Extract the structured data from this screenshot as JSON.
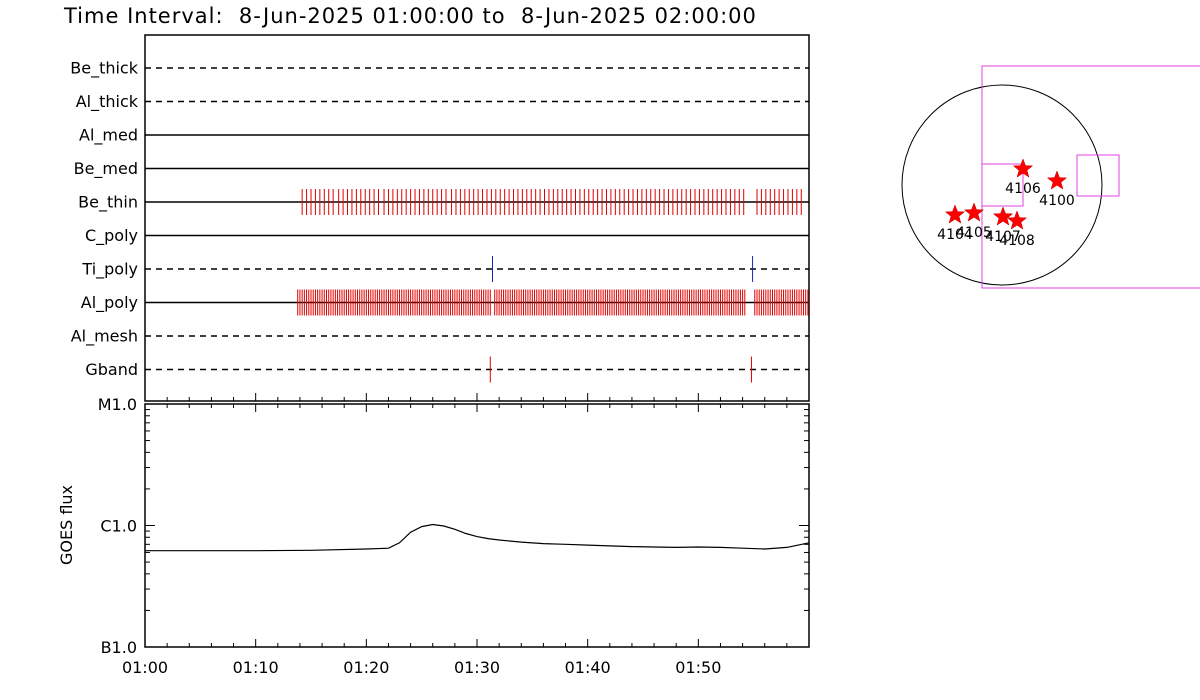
{
  "title": "Time Interval:  8-Jun-2025 01:00:00 to  8-Jun-2025 02:00:00",
  "colors": {
    "event_red": "#e00000",
    "event_blue": "#2020c0",
    "map_magenta": "#e040e0",
    "star_red": "#ff0000"
  },
  "chart_data": [
    {
      "type": "event-timeline",
      "x_range_min": [
        0,
        60
      ],
      "rows": [
        {
          "name": "Be_thick",
          "style": "dashed",
          "events": []
        },
        {
          "name": "Al_thick",
          "style": "dashed",
          "events": []
        },
        {
          "name": "Al_med",
          "style": "solid",
          "events": []
        },
        {
          "name": "Be_med",
          "style": "solid",
          "events": []
        },
        {
          "name": "Be_thin",
          "style": "solid",
          "event_color": "red",
          "events": [
            14.2,
            14.6,
            15.0,
            15.4,
            15.8,
            16.2,
            16.6,
            17.0,
            17.5,
            17.9,
            18.3,
            18.7,
            19.1,
            19.5,
            19.9,
            20.3,
            20.7,
            21.1,
            21.6,
            22.0,
            22.4,
            22.8,
            23.2,
            23.6,
            24.0,
            24.4,
            24.8,
            25.2,
            25.6,
            26.0,
            26.4,
            26.8,
            27.2,
            27.7,
            28.1,
            28.5,
            28.9,
            29.3,
            29.7,
            30.1,
            30.5,
            30.9,
            31.3,
            31.7,
            32.1,
            32.5,
            32.9,
            33.3,
            33.7,
            34.1,
            34.5,
            34.9,
            35.3,
            35.7,
            36.1,
            36.5,
            36.9,
            37.3,
            37.7,
            38.1,
            38.5,
            38.9,
            39.3,
            39.7,
            40.1,
            40.5,
            40.9,
            41.3,
            41.7,
            42.1,
            42.5,
            42.9,
            43.3,
            43.7,
            44.1,
            44.5,
            44.9,
            45.3,
            45.7,
            46.1,
            46.5,
            46.9,
            47.3,
            47.7,
            48.1,
            48.5,
            48.9,
            49.3,
            49.7,
            50.1,
            50.5,
            50.9,
            51.3,
            51.7,
            52.1,
            52.5,
            52.9,
            53.3,
            53.7,
            54.1,
            55.3,
            55.7,
            56.1,
            56.5,
            56.9,
            57.3,
            57.7,
            58.1,
            58.5,
            58.9,
            59.3
          ]
        },
        {
          "name": "C_poly",
          "style": "solid",
          "events": []
        },
        {
          "name": "Ti_poly",
          "style": "dashed",
          "event_color": "blue",
          "events": [
            31.4,
            54.9
          ]
        },
        {
          "name": "Al_poly",
          "style": "solid",
          "event_color": "red",
          "events": [
            13.8,
            14.0,
            14.2,
            14.4,
            14.6,
            14.8,
            15.0,
            15.2,
            15.4,
            15.6,
            15.8,
            16.0,
            16.2,
            16.4,
            16.6,
            16.8,
            17.0,
            17.2,
            17.4,
            17.6,
            17.8,
            18.0,
            18.2,
            18.4,
            18.6,
            18.8,
            19.0,
            19.2,
            19.4,
            19.6,
            19.8,
            20.0,
            20.2,
            20.4,
            20.6,
            20.8,
            21.0,
            21.2,
            21.4,
            21.6,
            21.8,
            22.0,
            22.2,
            22.4,
            22.6,
            22.8,
            23.0,
            23.2,
            23.4,
            23.6,
            23.8,
            24.0,
            24.2,
            24.4,
            24.6,
            24.8,
            25.0,
            25.2,
            25.4,
            25.6,
            25.8,
            26.0,
            26.2,
            26.4,
            26.6,
            26.8,
            27.0,
            27.2,
            27.4,
            27.6,
            27.8,
            28.0,
            28.2,
            28.4,
            28.6,
            28.8,
            29.0,
            29.2,
            29.4,
            29.6,
            29.8,
            30.0,
            30.2,
            30.4,
            30.6,
            30.8,
            31.0,
            31.2,
            31.6,
            31.8,
            32.0,
            32.2,
            32.4,
            32.6,
            32.8,
            33.0,
            33.2,
            33.4,
            33.6,
            33.8,
            34.0,
            34.2,
            34.4,
            34.6,
            34.8,
            35.0,
            35.2,
            35.4,
            35.6,
            35.8,
            36.0,
            36.2,
            36.4,
            36.6,
            36.8,
            37.0,
            37.2,
            37.4,
            37.6,
            37.8,
            38.0,
            38.2,
            38.4,
            38.6,
            38.8,
            39.0,
            39.2,
            39.4,
            39.6,
            39.8,
            40.0,
            40.2,
            40.4,
            40.6,
            40.8,
            41.0,
            41.2,
            41.4,
            41.6,
            41.8,
            42.0,
            42.2,
            42.4,
            42.6,
            42.8,
            43.0,
            43.2,
            43.4,
            43.6,
            43.8,
            44.0,
            44.2,
            44.4,
            44.6,
            44.8,
            45.0,
            45.2,
            45.4,
            45.6,
            45.8,
            46.0,
            46.2,
            46.4,
            46.6,
            46.8,
            47.0,
            47.2,
            47.4,
            47.6,
            47.8,
            48.0,
            48.2,
            48.4,
            48.6,
            48.8,
            49.0,
            49.2,
            49.4,
            49.6,
            49.8,
            50.0,
            50.2,
            50.4,
            50.6,
            50.8,
            51.0,
            51.2,
            51.4,
            51.6,
            51.8,
            52.0,
            52.2,
            52.4,
            52.6,
            52.8,
            53.0,
            53.2,
            53.4,
            53.6,
            53.8,
            54.0,
            54.2,
            55.1,
            55.3,
            55.5,
            55.7,
            55.9,
            56.1,
            56.3,
            56.5,
            56.7,
            56.9,
            57.1,
            57.3,
            57.5,
            57.7,
            57.9,
            58.1,
            58.3,
            58.5,
            58.7,
            58.9,
            59.1,
            59.3,
            59.5,
            59.7,
            59.9
          ]
        },
        {
          "name": "Al_mesh",
          "style": "dashed",
          "events": []
        },
        {
          "name": "Gband",
          "style": "dashed",
          "event_color": "red",
          "events": [
            31.2,
            54.8
          ]
        }
      ]
    },
    {
      "type": "line",
      "ylabel": "GOES flux",
      "y_scale": "log",
      "y_range": [
        1e-07,
        1e-05
      ],
      "y_ticks": [
        {
          "value": 1e-07,
          "label": "B1.0"
        },
        {
          "value": 1e-06,
          "label": "C1.0"
        },
        {
          "value": 1e-05,
          "label": "M1.0"
        }
      ],
      "x_range_min": [
        0,
        60
      ],
      "x_ticks": [
        {
          "value": 0,
          "label": "01:00"
        },
        {
          "value": 10,
          "label": "01:10"
        },
        {
          "value": 20,
          "label": "01:20"
        },
        {
          "value": 30,
          "label": "01:30"
        },
        {
          "value": 40,
          "label": "01:40"
        },
        {
          "value": 50,
          "label": "01:50"
        }
      ],
      "series": [
        {
          "x": [
            0,
            5,
            10,
            15,
            20,
            22,
            23,
            24,
            25,
            26,
            27,
            28,
            29,
            30,
            31,
            32,
            34,
            36,
            38,
            40,
            42,
            44,
            46,
            48,
            50,
            52,
            54,
            56,
            58,
            60
          ],
          "y": [
            6.2e-07,
            6.2e-07,
            6.2e-07,
            6.25e-07,
            6.4e-07,
            6.5e-07,
            7.2e-07,
            8.8e-07,
            9.8e-07,
            1.02e-06,
            9.9e-07,
            9.3e-07,
            8.6e-07,
            8.1e-07,
            7.8e-07,
            7.6e-07,
            7.3e-07,
            7.1e-07,
            7e-07,
            6.9e-07,
            6.8e-07,
            6.7e-07,
            6.65e-07,
            6.6e-07,
            6.65e-07,
            6.6e-07,
            6.5e-07,
            6.4e-07,
            6.6e-07,
            7.2e-07
          ]
        }
      ]
    },
    {
      "type": "scatter",
      "name": "solar-disk-map",
      "markers": [
        {
          "label": "4100",
          "x": 0.55,
          "y": 0.04
        },
        {
          "label": "4104",
          "x": -0.47,
          "y": -0.3
        },
        {
          "label": "4105",
          "x": -0.28,
          "y": -0.28
        },
        {
          "label": "4106",
          "x": 0.21,
          "y": 0.16
        },
        {
          "label": "4107",
          "x": 0.01,
          "y": -0.32
        },
        {
          "label": "4108",
          "x": 0.15,
          "y": -0.36
        }
      ]
    }
  ]
}
